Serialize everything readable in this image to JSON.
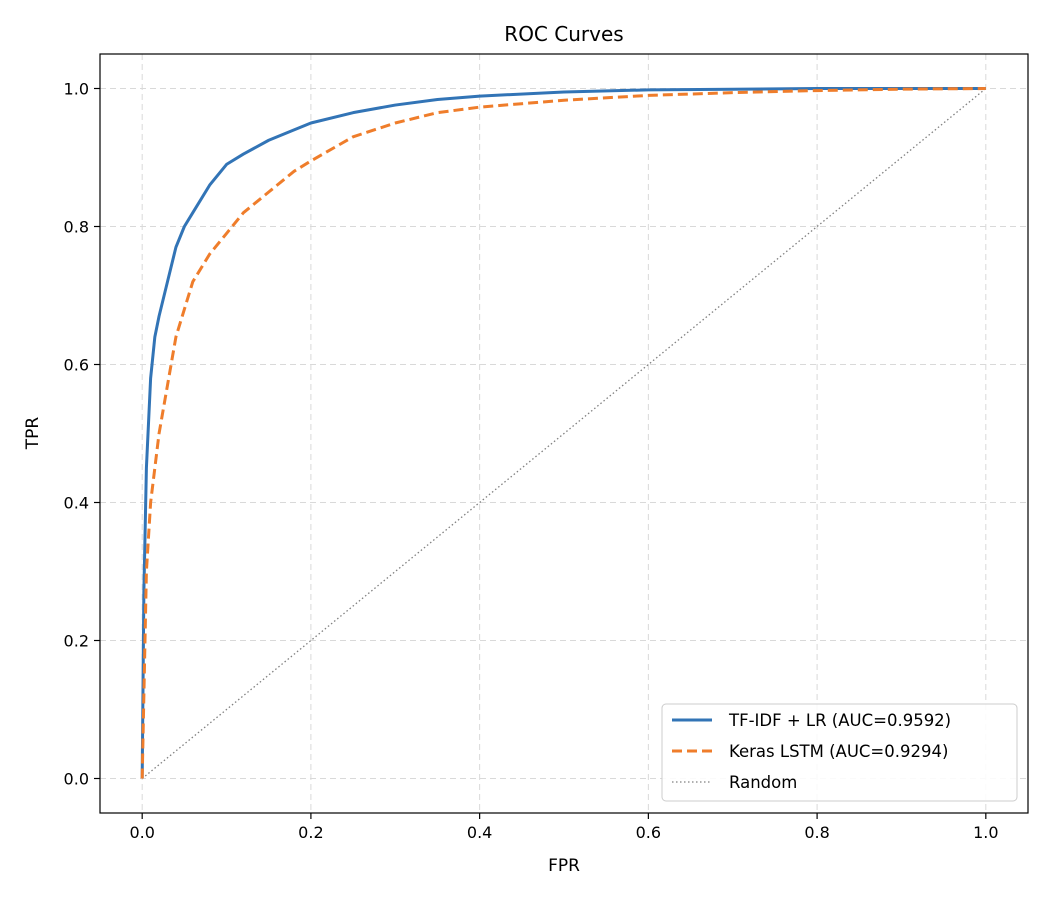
{
  "chart_data": {
    "type": "line",
    "title": "ROC Curves",
    "xlabel": "FPR",
    "ylabel": "TPR",
    "xlim": [
      -0.05,
      1.05
    ],
    "ylim": [
      -0.05,
      1.05
    ],
    "xticks": [
      0.0,
      0.2,
      0.4,
      0.6,
      0.8,
      1.0
    ],
    "yticks": [
      0.0,
      0.2,
      0.4,
      0.6,
      0.8,
      1.0
    ],
    "xtick_labels": [
      "0.0",
      "0.2",
      "0.4",
      "0.6",
      "0.8",
      "1.0"
    ],
    "ytick_labels": [
      "0.0",
      "0.2",
      "0.4",
      "0.6",
      "0.8",
      "1.0"
    ],
    "grid": true,
    "legend_position": "bottom-right",
    "series": [
      {
        "name": "TF-IDF + LR (AUC=0.9592)",
        "color": "#3274b6",
        "line_style": "solid",
        "x": [
          0.0,
          0.002,
          0.005,
          0.01,
          0.015,
          0.02,
          0.03,
          0.04,
          0.05,
          0.06,
          0.08,
          0.1,
          0.12,
          0.15,
          0.18,
          0.2,
          0.25,
          0.3,
          0.35,
          0.4,
          0.5,
          0.6,
          0.7,
          0.8,
          0.9,
          1.0
        ],
        "y": [
          0.0,
          0.27,
          0.45,
          0.58,
          0.64,
          0.67,
          0.72,
          0.77,
          0.8,
          0.82,
          0.86,
          0.89,
          0.905,
          0.925,
          0.94,
          0.95,
          0.965,
          0.976,
          0.984,
          0.989,
          0.995,
          0.998,
          0.999,
          1.0,
          1.0,
          1.0
        ]
      },
      {
        "name": "Keras LSTM (AUC=0.9294)",
        "color": "#ef7d2b",
        "line_style": "dashed",
        "x": [
          0.0,
          0.005,
          0.01,
          0.015,
          0.02,
          0.03,
          0.04,
          0.05,
          0.06,
          0.08,
          0.1,
          0.12,
          0.15,
          0.18,
          0.2,
          0.25,
          0.3,
          0.35,
          0.4,
          0.5,
          0.6,
          0.7,
          0.8,
          0.9,
          1.0
        ],
        "y": [
          0.0,
          0.3,
          0.4,
          0.45,
          0.5,
          0.57,
          0.64,
          0.68,
          0.72,
          0.76,
          0.79,
          0.82,
          0.85,
          0.88,
          0.895,
          0.93,
          0.95,
          0.965,
          0.973,
          0.983,
          0.99,
          0.994,
          0.997,
          0.999,
          1.0
        ]
      },
      {
        "name": "Random",
        "color": "#808080",
        "line_style": "dotted",
        "x": [
          0.0,
          1.0
        ],
        "y": [
          0.0,
          1.0
        ]
      }
    ]
  }
}
